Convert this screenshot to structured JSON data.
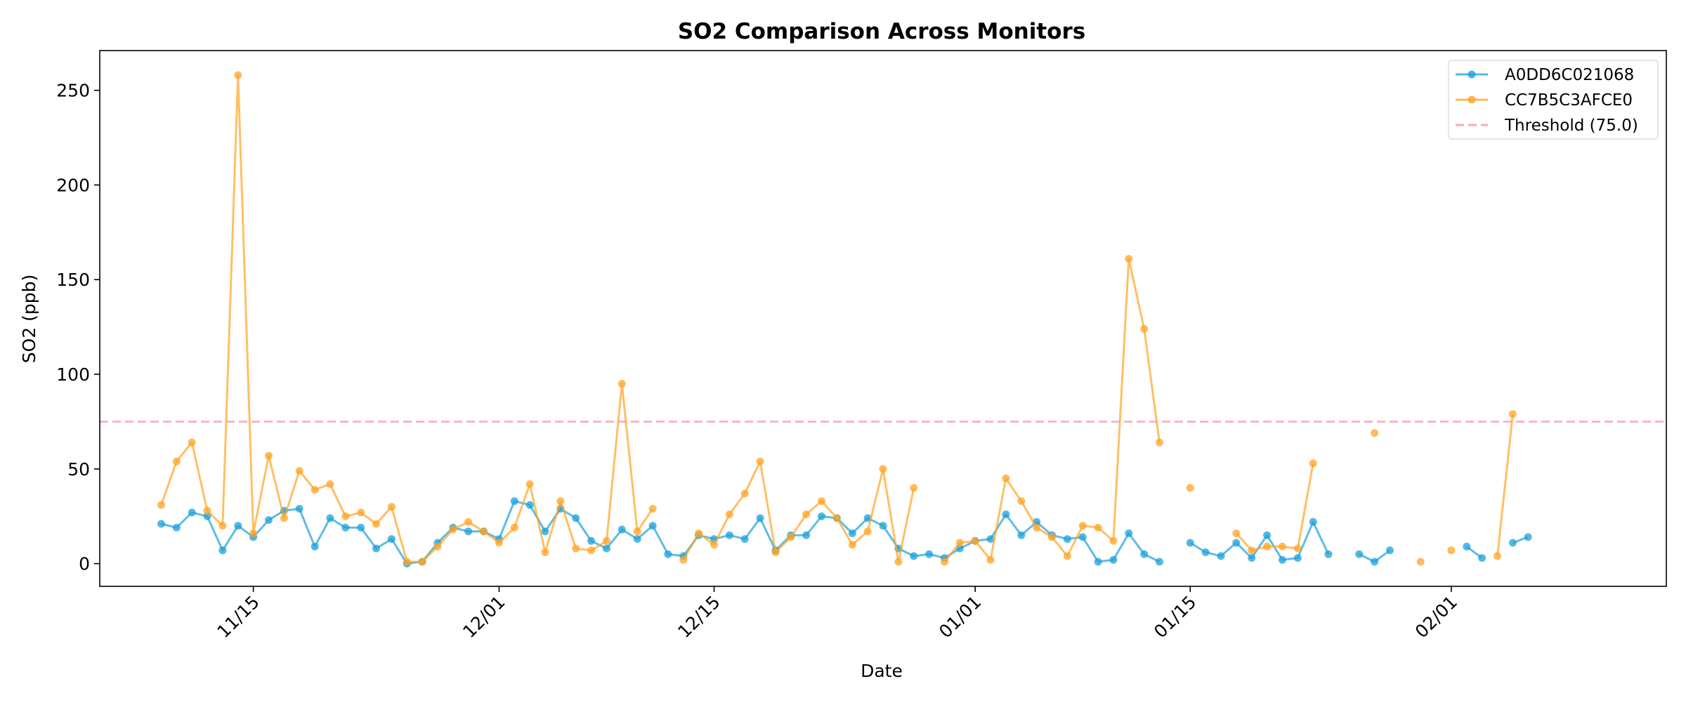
{
  "chart_data": {
    "type": "line",
    "title": "SO2 Comparison Across Monitors",
    "xlabel": "Date",
    "ylabel": "SO2 (ppb)",
    "x_start": "2024-11-09",
    "x_end": "2025-02-13",
    "xlim": [
      "2024-11-05",
      "2025-02-15"
    ],
    "ylim": [
      -12,
      271
    ],
    "x_ticks": [
      {
        "date": "2024-11-15",
        "label": "11/15"
      },
      {
        "date": "2024-12-01",
        "label": "12/01"
      },
      {
        "date": "2024-12-15",
        "label": "12/15"
      },
      {
        "date": "2025-01-01",
        "label": "01/01"
      },
      {
        "date": "2025-01-15",
        "label": "01/15"
      },
      {
        "date": "2025-02-01",
        "label": "02/01"
      }
    ],
    "y_ticks": [
      0,
      50,
      100,
      150,
      200,
      250
    ],
    "series": [
      {
        "name": "A0DD6C021068",
        "color": "#1ba1d9",
        "values": [
          21,
          19,
          27,
          25,
          7,
          20,
          14,
          23,
          28,
          29,
          9,
          24,
          19,
          19,
          8,
          13,
          0,
          1,
          11,
          19,
          17,
          17,
          13,
          33,
          31,
          17,
          29,
          24,
          12,
          8,
          18,
          13,
          20,
          5,
          4,
          15,
          13,
          15,
          13,
          24,
          7,
          15,
          15,
          25,
          24,
          16,
          24,
          20,
          8,
          4,
          5,
          3,
          8,
          12,
          13,
          26,
          15,
          22,
          15,
          13,
          14,
          1,
          2,
          16,
          5,
          1,
          null,
          11,
          6,
          4,
          11,
          3,
          15,
          2,
          3,
          22,
          5,
          null,
          5,
          1,
          7,
          null,
          null,
          null,
          null,
          9,
          3,
          null,
          11,
          14
        ]
      },
      {
        "name": "CC7B5C3AFCE0",
        "color": "#ffa424",
        "values": [
          31,
          54,
          64,
          28,
          20,
          258,
          16,
          57,
          24,
          49,
          39,
          42,
          25,
          27,
          21,
          30,
          1,
          1,
          9,
          18,
          22,
          17,
          11,
          19,
          42,
          6,
          33,
          8,
          7,
          12,
          95,
          17,
          29,
          null,
          2,
          16,
          10,
          26,
          37,
          54,
          6,
          14,
          26,
          33,
          24,
          10,
          17,
          50,
          1,
          40,
          null,
          1,
          11,
          12,
          2,
          45,
          33,
          19,
          14,
          4,
          20,
          19,
          12,
          161,
          124,
          64,
          null,
          40,
          null,
          null,
          16,
          7,
          9,
          9,
          8,
          53,
          null,
          null,
          null,
          69,
          null,
          null,
          1,
          null,
          7,
          null,
          null,
          4,
          79,
          null
        ]
      }
    ],
    "threshold": {
      "value": 75.0,
      "label": "Threshold (75.0)",
      "color": "#ff8a9a"
    },
    "legend_position": "top-right",
    "grid": false
  }
}
